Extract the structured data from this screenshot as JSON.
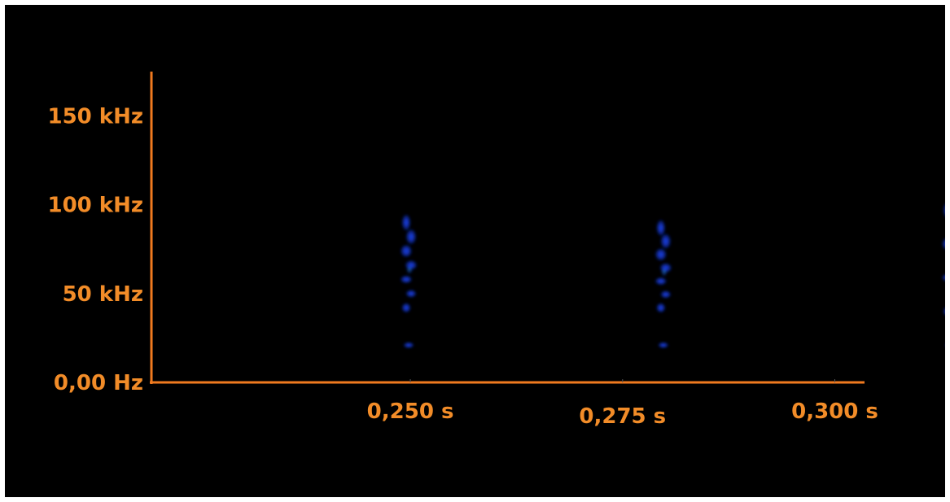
{
  "chart_data": {
    "type": "heatmap",
    "title": "",
    "xlabel": "",
    "ylabel": "",
    "x_unit": "s",
    "y_unit": "Hz",
    "xlim": [
      0.2195,
      0.3035
    ],
    "ylim": [
      0,
      175000
    ],
    "x_ticks": [
      {
        "value": 0.25,
        "label": "0,250 s"
      },
      {
        "value": 0.275,
        "label": "0,275 s"
      },
      {
        "value": 0.3,
        "label": "0,300 s"
      }
    ],
    "y_ticks": [
      {
        "value": 0,
        "label": "0,00 Hz"
      },
      {
        "value": 50000,
        "label": "50 kHz"
      },
      {
        "value": 100000,
        "label": "100 kHz"
      },
      {
        "value": 150000,
        "label": "150 kHz"
      }
    ],
    "grid": false,
    "colors": {
      "background": "#000000",
      "axis": "#f07a1f",
      "tick_label": "#f28c28",
      "intensity_low": "#0a1a9a",
      "intensity_mid": "#1e48ff",
      "intensity_high": "#27c07a"
    },
    "pulses": [
      {
        "name": "pulse-1",
        "t": 0.2498,
        "f_start": 90000,
        "f_end": 42000,
        "harmonic": 21000,
        "intensity": 0.75
      },
      {
        "name": "pulse-2",
        "t": 0.2798,
        "f_start": 87000,
        "f_end": 42000,
        "harmonic": 21000,
        "intensity": 0.78
      },
      {
        "name": "pulse-3",
        "t": 0.3136,
        "f_start": 97000,
        "f_end": 40000,
        "harmonic": 21000,
        "intensity": 1.0
      }
    ]
  }
}
